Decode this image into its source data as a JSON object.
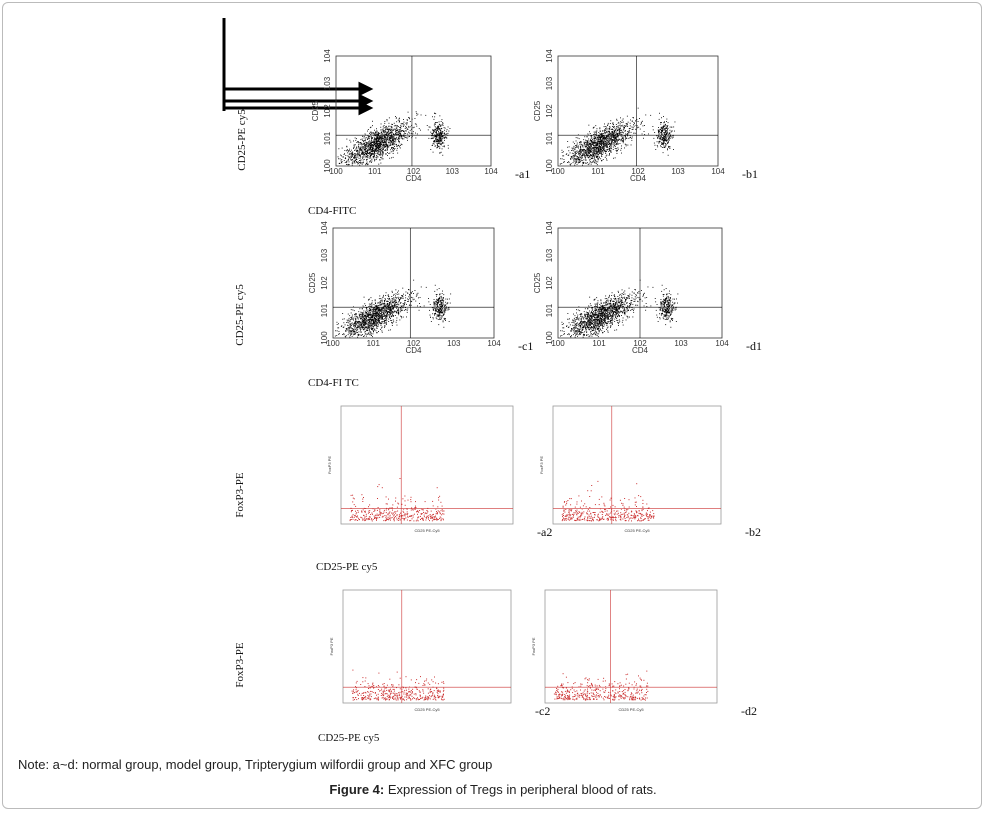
{
  "panels": [
    {
      "tag": "-a1",
      "x_axis_label": "CD4",
      "y_axis_label": "CD25",
      "x_ticks": [
        "100",
        "101",
        "102",
        "103",
        "104"
      ],
      "y_ticks": [
        "100",
        "101",
        "102",
        "103",
        "104"
      ]
    },
    {
      "tag": "-b1",
      "x_axis_label": "CD4",
      "y_axis_label": "CD25",
      "x_ticks": [
        "100",
        "101",
        "102",
        "103",
        "104"
      ],
      "y_ticks": [
        "100",
        "101",
        "102",
        "103",
        "104"
      ]
    },
    {
      "tag": "-c1",
      "x_axis_label": "CD4",
      "y_axis_label": "CD25",
      "x_ticks": [
        "100",
        "101",
        "102",
        "103",
        "104"
      ],
      "y_ticks": [
        "100",
        "101",
        "102",
        "103",
        "104"
      ]
    },
    {
      "tag": "-d1",
      "x_axis_label": "CD4",
      "y_axis_label": "CD25",
      "x_ticks": [
        "100",
        "101",
        "102",
        "103",
        "104"
      ],
      "y_ticks": [
        "100",
        "101",
        "102",
        "103",
        "104"
      ]
    },
    {
      "tag": "-a2",
      "x_axis_label": "CD25 PE-Cy5",
      "y_axis_label": "FoxP3 PE"
    },
    {
      "tag": "-b2",
      "x_axis_label": "CD25 PE-Cy5",
      "y_axis_label": "FoxP3 PE"
    },
    {
      "tag": "-c2",
      "x_axis_label": "CD25 PE-Cy5",
      "y_axis_label": "FoxP3 PE"
    },
    {
      "tag": "-d2",
      "x_axis_label": "CD25 PE-Cy5",
      "y_axis_label": "FoxP3 PE"
    }
  ],
  "side_labels": [
    "CD25-PE cy5",
    "CD25-PE cy5",
    "FoxP3-PE",
    "FoxP3-PE"
  ],
  "bottom_labels": [
    "CD4-FITC",
    "CD4-FI TC",
    "CD25-PE cy5",
    "CD25-PE cy5"
  ],
  "note": "Note: a~d: normal group, model group, Tripterygium wilfordii group and XFC group",
  "caption": {
    "label": "Figure 4:",
    "text": " Expression of Tregs in peripheral blood of rats."
  }
}
